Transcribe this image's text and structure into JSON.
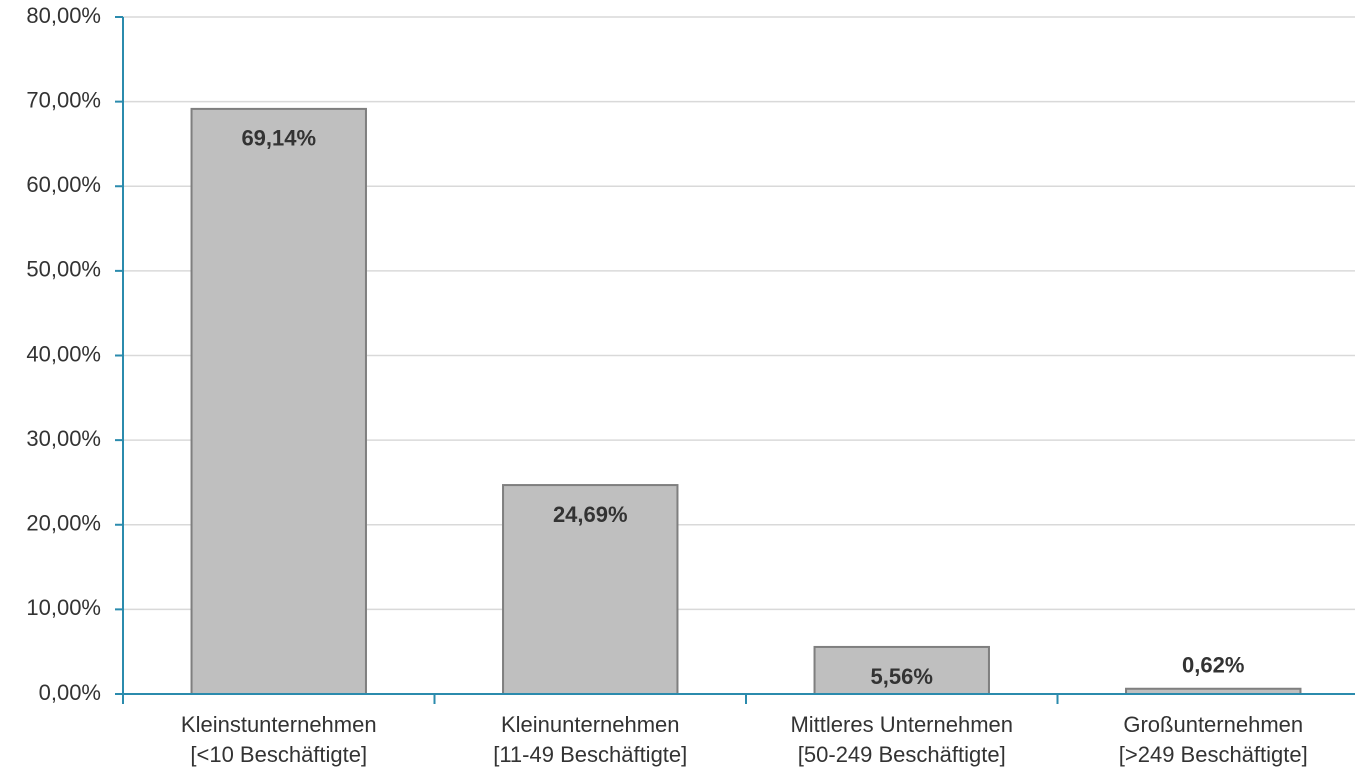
{
  "chart_data": {
    "type": "bar",
    "categories": [
      "Kleinstunternehmen\n[<10 Beschäftigte]",
      "Kleinunternehmen\n[11-49 Beschäftigte]",
      "Mittleres Unternehmen\n[50-249 Beschäftigte]",
      "Großunternehmen\n[>249 Beschäftigte]"
    ],
    "values": [
      69.14,
      24.69,
      5.56,
      0.62
    ],
    "value_labels": [
      "69,14%",
      "24,69%",
      "5,56%",
      "0,62%"
    ],
    "color": "#bfbfbf",
    "ylim": [
      0,
      80
    ],
    "yticks": [
      {
        "value": 0,
        "label": "0,00%"
      },
      {
        "value": 10,
        "label": "10,00%"
      },
      {
        "value": 20,
        "label": "20,00%"
      },
      {
        "value": 30,
        "label": "30,00%"
      },
      {
        "value": 40,
        "label": "40,00%"
      },
      {
        "value": 50,
        "label": "50,00%"
      },
      {
        "value": 60,
        "label": "60,00%"
      },
      {
        "value": 70,
        "label": "70,00%"
      },
      {
        "value": 80,
        "label": "80,00%"
      }
    ],
    "grid": true
  }
}
